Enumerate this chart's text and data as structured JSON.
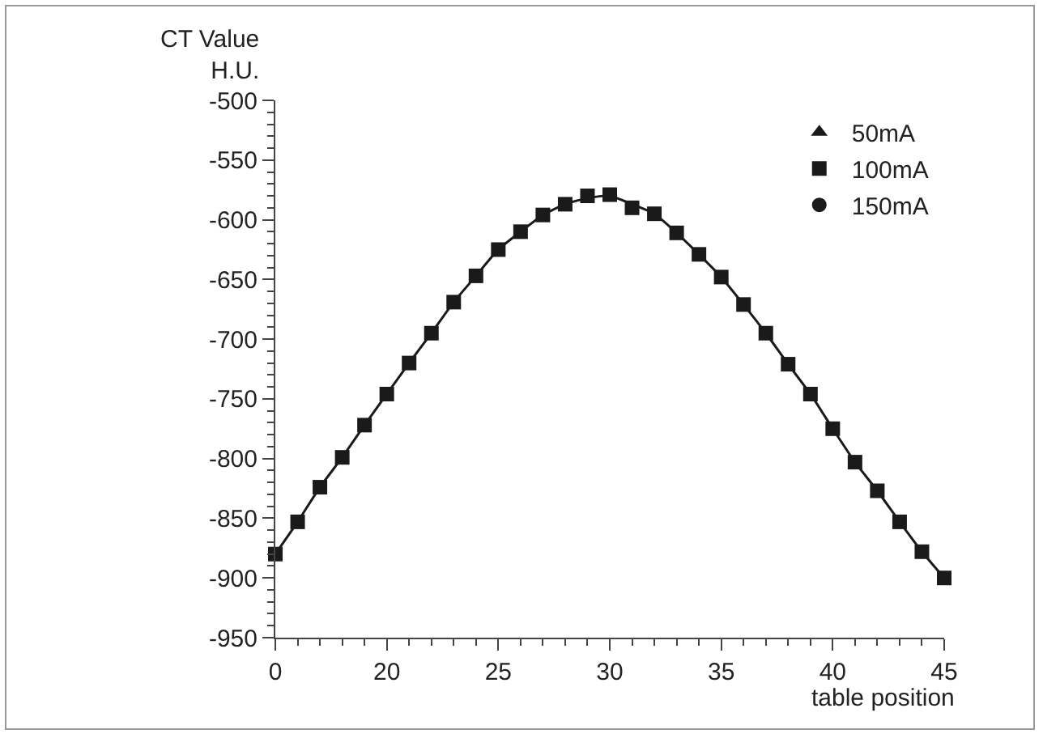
{
  "chart_data": {
    "type": "scatter",
    "xlabel": "table position",
    "ylabel": "CT Value\nH.U.",
    "categories": [
      "0",
      null,
      null,
      null,
      null,
      "20",
      null,
      null,
      null,
      null,
      "25",
      null,
      null,
      null,
      null,
      "30",
      null,
      null,
      null,
      null,
      "35",
      null,
      null,
      null,
      null,
      "40",
      null,
      null,
      null,
      null,
      "45"
    ],
    "series": [
      {
        "type": "line",
        "color": "#1a1a1a",
        "marker": "none",
        "line_style": "solid",
        "values": [
          -880,
          -853,
          -824,
          -799,
          -772,
          -746,
          -720,
          -695,
          -669,
          -647,
          -625,
          -610,
          -596,
          -587,
          -582,
          -580,
          -587,
          -595,
          -611,
          -629,
          -648,
          -671,
          -695,
          -721,
          -746,
          -775,
          -803,
          -827,
          -853,
          -878,
          -900
        ]
      },
      {
        "name": "50mA",
        "color": "#1a1a1a",
        "marker": "triangle",
        "values": [
          null,
          null,
          null,
          null,
          null,
          null,
          null,
          null,
          null,
          null,
          null,
          null,
          null,
          null,
          null,
          null,
          null,
          null,
          null,
          null,
          null,
          null,
          null,
          null,
          null,
          null,
          null,
          null,
          null,
          null,
          null
        ]
      },
      {
        "name": "100mA",
        "color": "#1a1a1a",
        "marker": "square",
        "values": [
          -880,
          -853,
          -824,
          -799,
          -772,
          -746,
          -720,
          -695,
          -669,
          -647,
          -625,
          -610,
          -596,
          -587,
          -580,
          -579,
          -590,
          -595,
          -611,
          -629,
          -648,
          -671,
          -695,
          -721,
          -746,
          -775,
          -803,
          -827,
          -853,
          -878,
          -900
        ]
      },
      {
        "name": "150mA",
        "color": "#1a1a1a",
        "marker": "circle",
        "values": [
          null,
          null,
          null,
          null,
          null,
          null,
          null,
          null,
          null,
          null,
          null,
          null,
          null,
          null,
          null,
          null,
          null,
          null,
          null,
          null,
          null,
          null,
          null,
          null,
          null,
          null,
          null,
          null,
          null,
          null,
          null
        ]
      }
    ],
    "ylim": [
      -950,
      -500
    ],
    "yticks": [
      -500,
      -550,
      -600,
      -650,
      -700,
      -750,
      -800,
      -850,
      -900,
      -950
    ],
    "grid": false,
    "legend": "top right"
  }
}
